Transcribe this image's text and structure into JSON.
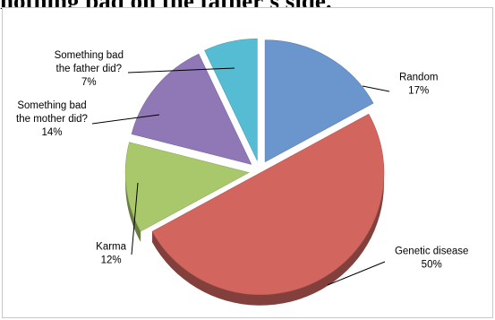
{
  "header": {
    "title": "nothing bad on the father's side."
  },
  "chart_data": {
    "type": "pie",
    "style": "3d-exploded",
    "title": "",
    "slices": [
      {
        "lines": [
          "Random",
          "17%"
        ],
        "value": 17,
        "color": "#6a95cd"
      },
      {
        "lines": [
          "Genetic disease",
          "50%"
        ],
        "value": 50,
        "color": "#d2665f"
      },
      {
        "lines": [
          "Karma",
          "12%"
        ],
        "value": 12,
        "color": "#a9c86b"
      },
      {
        "lines": [
          "Something bad",
          "the mother did?",
          "14%"
        ],
        "value": 14,
        "color": "#8f78b5"
      },
      {
        "lines": [
          "Something bad",
          "the father did?",
          "7%"
        ],
        "value": 7,
        "color": "#56bcd4"
      }
    ]
  }
}
